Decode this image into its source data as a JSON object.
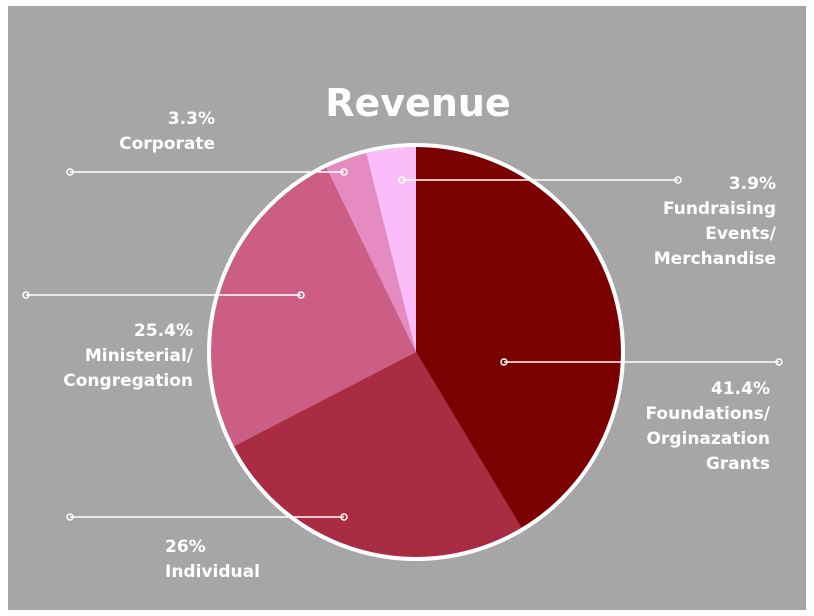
{
  "chart_data": {
    "type": "pie",
    "title": "Revenue",
    "categories": [
      "Foundations/ Orginazation Grants",
      "Individual",
      "Ministerial/ Congregation",
      "Corporate",
      "Fundraising Events/ Merchandise"
    ],
    "values": [
      41.4,
      26,
      25.4,
      3.3,
      3.9
    ],
    "value_labels": [
      "41.4%",
      "26%",
      "25.4%",
      "3.3%",
      "3.9%"
    ],
    "colors": [
      "#7b0000",
      "#a92c43",
      "#cc5e86",
      "#e68bc1",
      "#fbbdf9"
    ]
  }
}
